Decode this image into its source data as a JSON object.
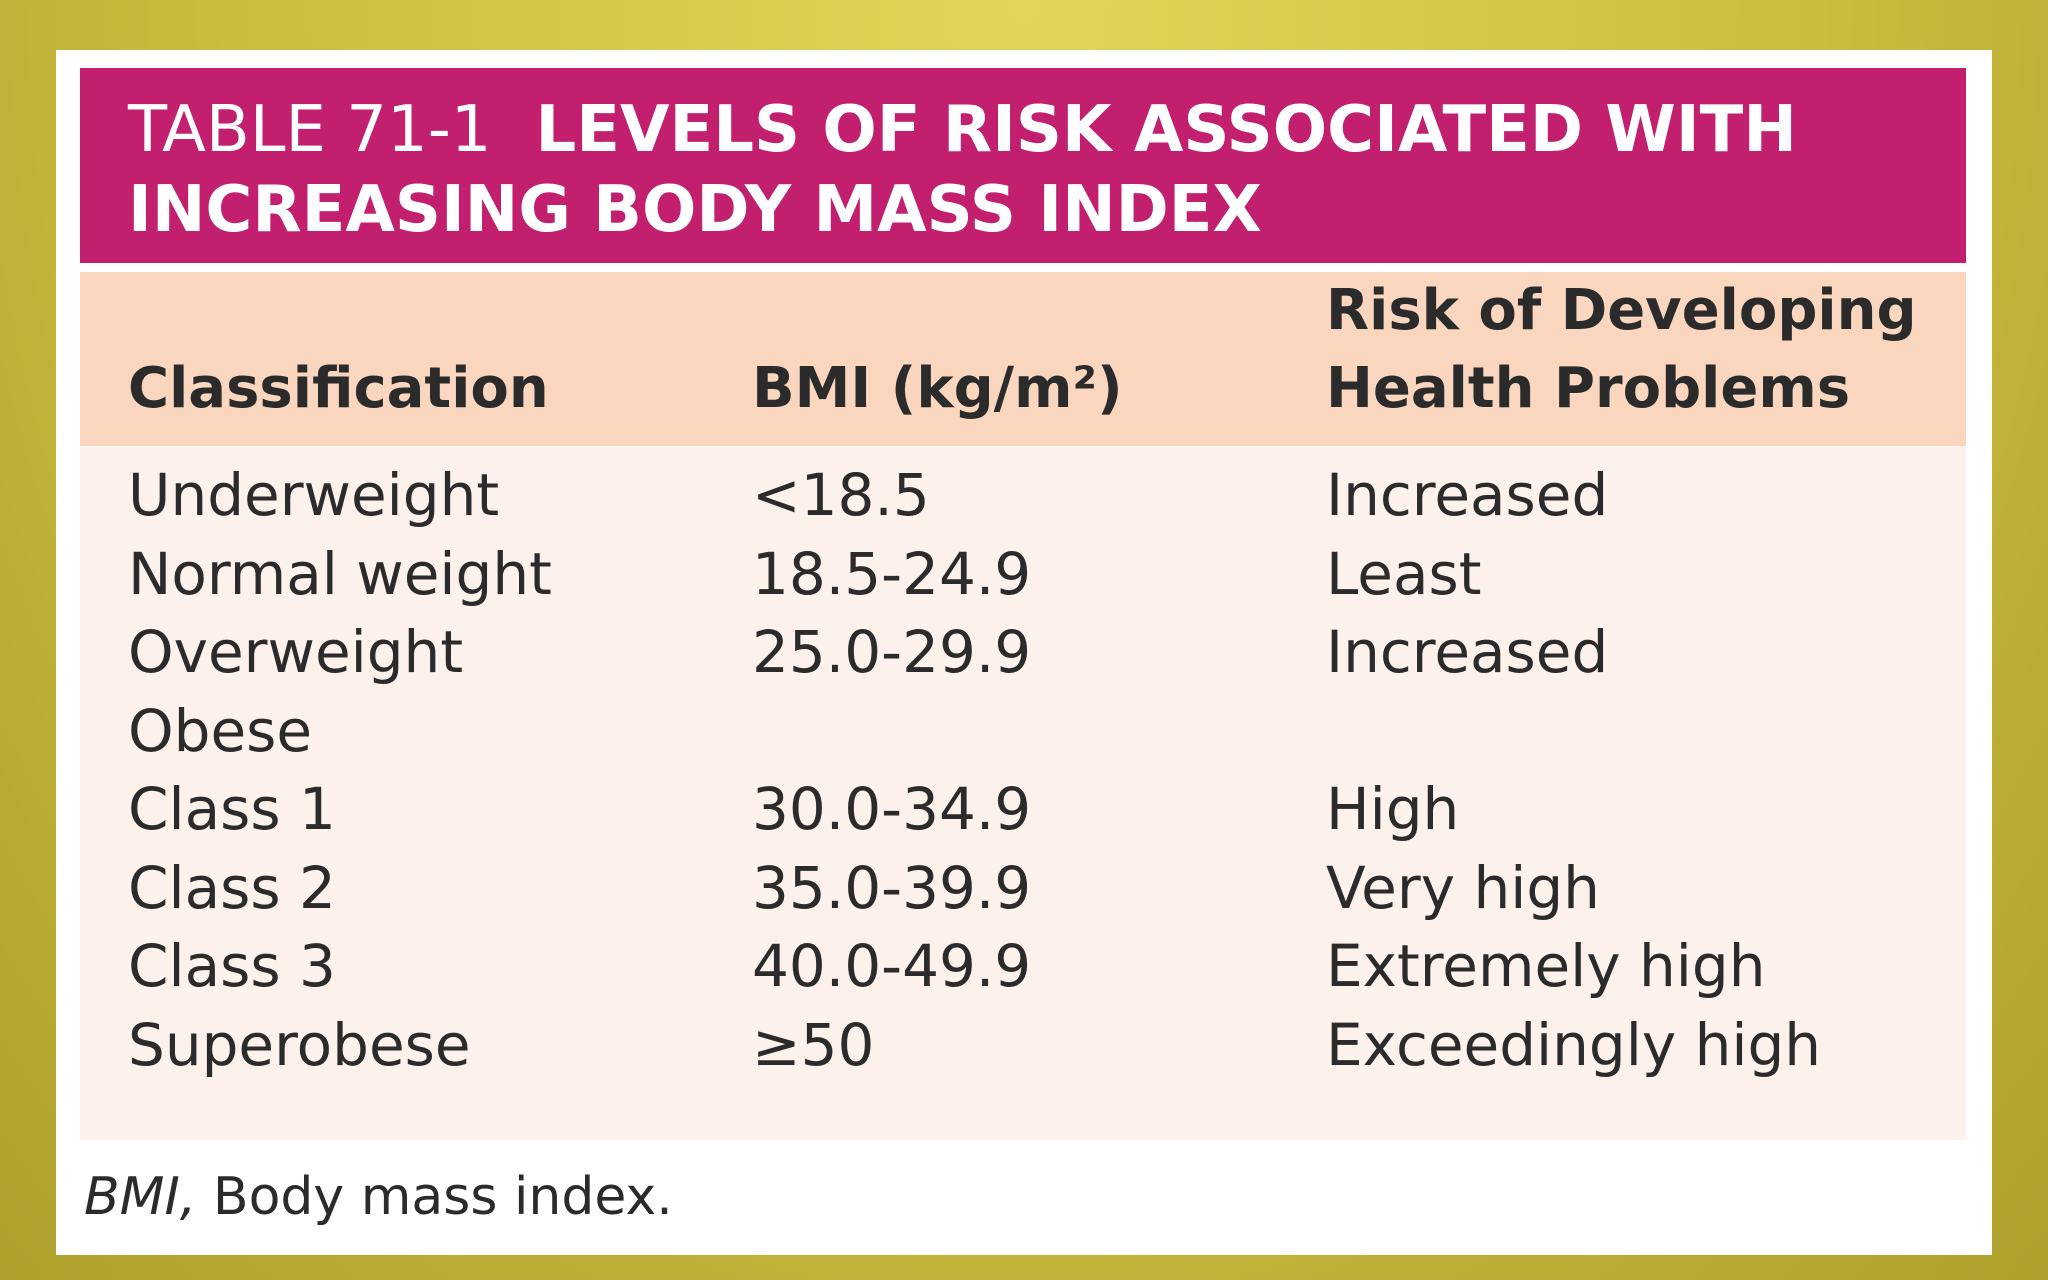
{
  "title": {
    "number": "TABLE 71-1",
    "line1": "LEVELS OF RISK ASSOCIATED WITH",
    "line2": "INCREASING BODY MASS INDEX"
  },
  "table": {
    "headers": {
      "classification": "Classification",
      "bmi": "BMI (kg/m²)",
      "risk_line1": "Risk of Developing",
      "risk_line2": "Health Problems"
    },
    "rows": [
      {
        "classification": "Underweight",
        "bmi": "<18.5",
        "risk": "Increased"
      },
      {
        "classification": "Normal weight",
        "bmi": "18.5-24.9",
        "risk": "Least"
      },
      {
        "classification": "Overweight",
        "bmi": "25.0-29.9",
        "risk": "Increased"
      },
      {
        "classification": "Obese",
        "bmi": "",
        "risk": ""
      },
      {
        "classification": "Class 1",
        "bmi": "30.0-34.9",
        "risk": "High"
      },
      {
        "classification": "Class 2",
        "bmi": "35.0-39.9",
        "risk": "Very high"
      },
      {
        "classification": "Class 3",
        "bmi": "40.0-49.9",
        "risk": "Extremely high"
      },
      {
        "classification": "Superobese",
        "bmi": "≥50",
        "risk": "Exceedingly high"
      }
    ]
  },
  "footnote": {
    "abbr": "BMI,",
    "text": " Body mass index."
  }
}
